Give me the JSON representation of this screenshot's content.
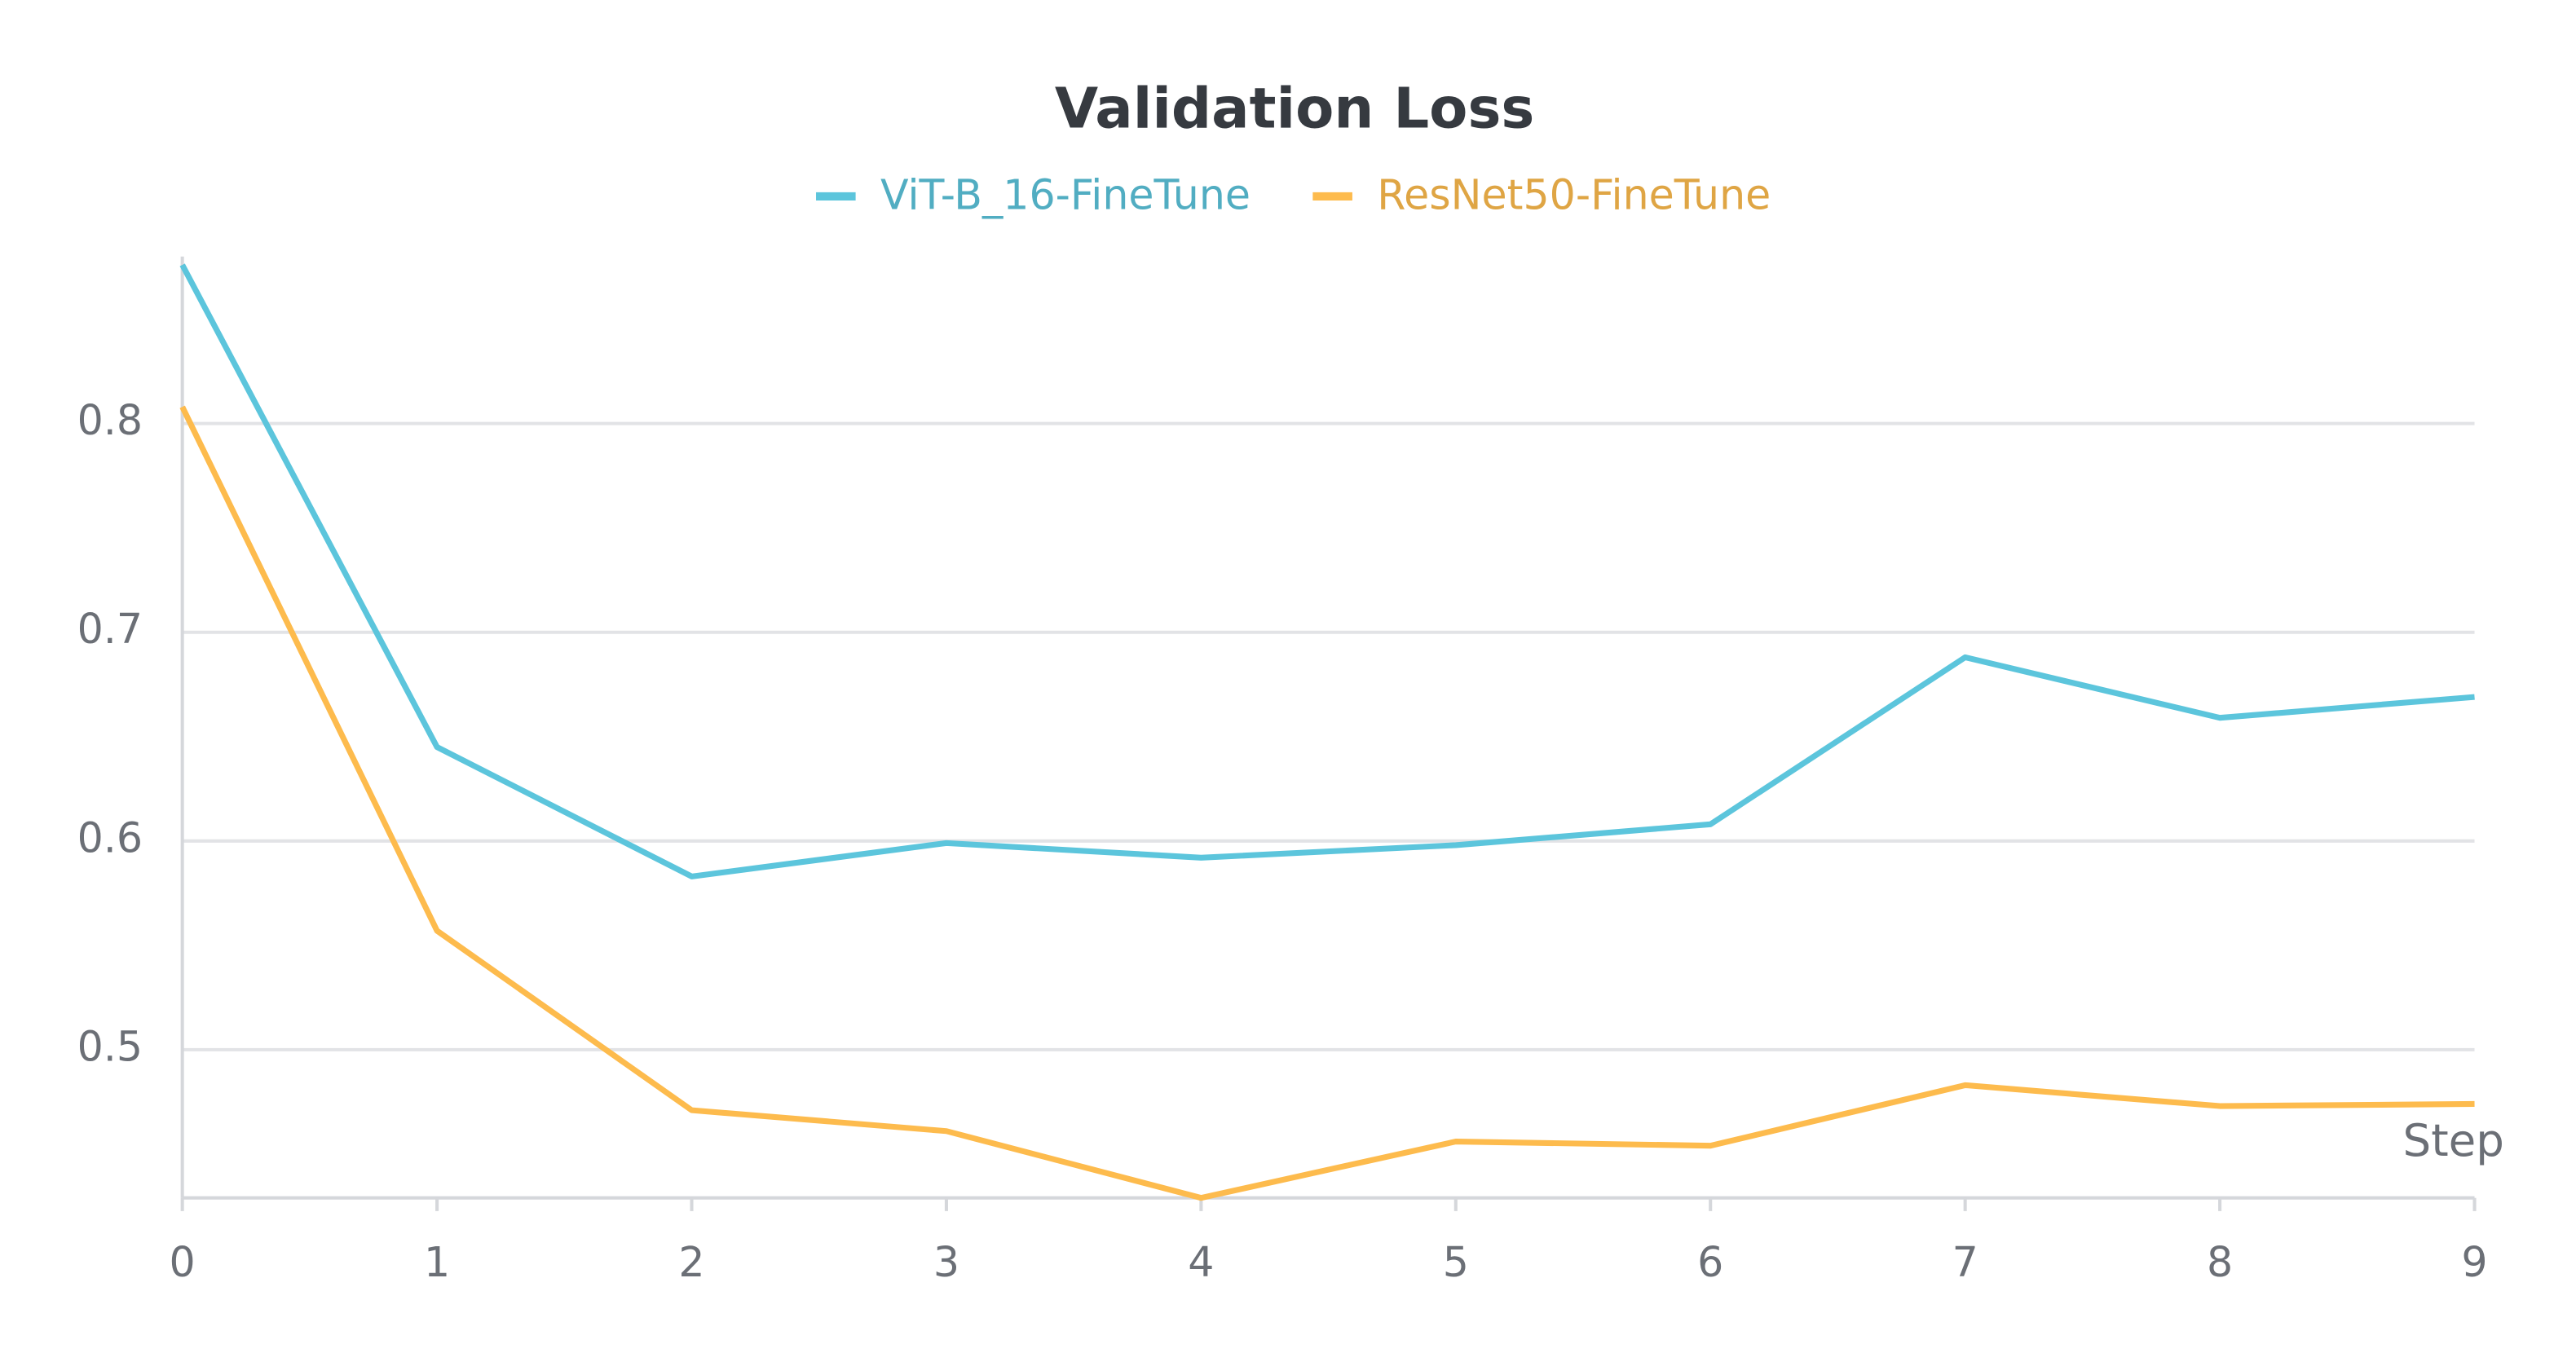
{
  "chart_data": {
    "type": "line",
    "title": "Validation Loss",
    "x_label": "Step",
    "x": [
      0,
      1,
      2,
      3,
      4,
      5,
      6,
      7,
      8,
      9
    ],
    "series": [
      {
        "name": "ViT-B_16-FineTune",
        "color": "#5cc5dc",
        "values": [
          0.876,
          0.645,
          0.583,
          0.599,
          0.592,
          0.598,
          0.608,
          0.688,
          0.659,
          0.669
        ]
      },
      {
        "name": "ResNet50-FineTune",
        "color": "#fdbb4d",
        "values": [
          0.808,
          0.557,
          0.471,
          0.461,
          0.429,
          0.456,
          0.454,
          0.483,
          0.473,
          0.474
        ]
      }
    ],
    "xlim": [
      0,
      9
    ],
    "xticks": [
      0,
      1,
      2,
      3,
      4,
      5,
      6,
      7,
      8,
      9
    ],
    "ylim": [
      0.429,
      0.88
    ],
    "yticks": [
      0.5,
      0.6,
      0.7,
      0.8
    ],
    "grid": true
  }
}
